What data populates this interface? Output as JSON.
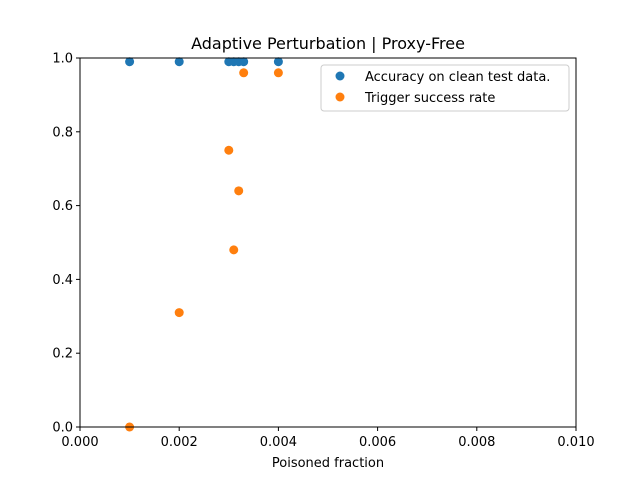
{
  "chart_data": {
    "type": "scatter",
    "title": "Adaptive Perturbation | Proxy-Free",
    "xlabel": "Poisoned fraction",
    "ylabel": "",
    "xlim": [
      0.0,
      0.01
    ],
    "ylim": [
      0.0,
      1.0
    ],
    "xticks": [
      "0.000",
      "0.002",
      "0.004",
      "0.006",
      "0.008",
      "0.010"
    ],
    "yticks": [
      "0.0",
      "0.2",
      "0.4",
      "0.6",
      "0.8",
      "1.0"
    ],
    "grid": false,
    "legend_position": "upper-right",
    "series": [
      {
        "name": "Accuracy on clean test data.",
        "color": "#1f77b4",
        "points": [
          {
            "x": 0.001,
            "y": 0.99
          },
          {
            "x": 0.002,
            "y": 0.99
          },
          {
            "x": 0.003,
            "y": 0.99
          },
          {
            "x": 0.0031,
            "y": 0.99
          },
          {
            "x": 0.0032,
            "y": 0.99
          },
          {
            "x": 0.0033,
            "y": 0.99
          },
          {
            "x": 0.004,
            "y": 0.99
          }
        ]
      },
      {
        "name": "Trigger success rate",
        "color": "#ff7f0e",
        "points": [
          {
            "x": 0.001,
            "y": 0.0
          },
          {
            "x": 0.002,
            "y": 0.31
          },
          {
            "x": 0.003,
            "y": 0.75
          },
          {
            "x": 0.0031,
            "y": 0.48
          },
          {
            "x": 0.0032,
            "y": 0.64
          },
          {
            "x": 0.0033,
            "y": 0.96
          },
          {
            "x": 0.004,
            "y": 0.96
          }
        ]
      }
    ]
  }
}
